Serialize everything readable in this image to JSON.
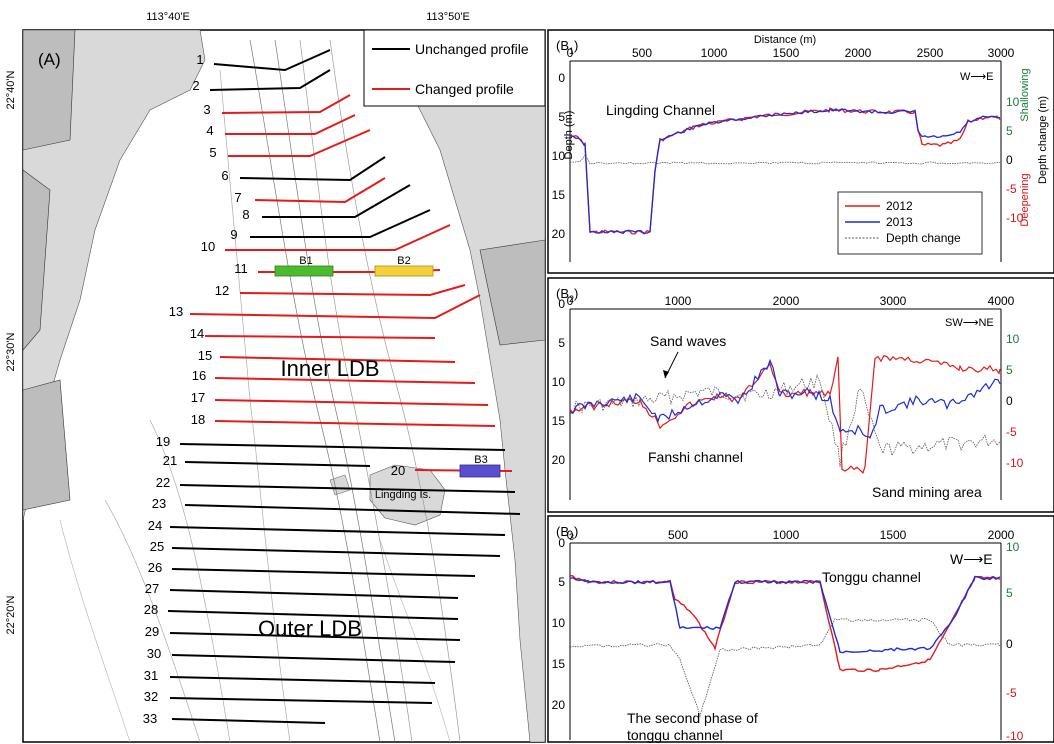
{
  "map": {
    "lon_ticks": [
      "113°40'E",
      "113°50'E"
    ],
    "lat_ticks": [
      "22°40'N",
      "22°30'N",
      "22°20'N"
    ],
    "panel_label": "(A)",
    "legend": {
      "unchanged": "Unchanged profile",
      "changed": "Changed profile"
    },
    "region_inner": "Inner LDB",
    "region_outer": "Outer LDB",
    "island_label": "Lingding Is.",
    "box_labels": [
      "B1",
      "B2",
      "B3"
    ],
    "colors": {
      "unchanged": "#000000",
      "changed": "#e41a1c",
      "box_b1": "#4cbb2e",
      "box_b2": "#f3d13a",
      "box_b3": "#5a4fcf",
      "land": "#d9d9d9"
    },
    "profiles": [
      {
        "id": "1",
        "status": "unchanged"
      },
      {
        "id": "2",
        "status": "unchanged"
      },
      {
        "id": "3",
        "status": "changed"
      },
      {
        "id": "4",
        "status": "changed"
      },
      {
        "id": "5",
        "status": "changed"
      },
      {
        "id": "6",
        "status": "unchanged"
      },
      {
        "id": "7",
        "status": "changed"
      },
      {
        "id": "8",
        "status": "unchanged"
      },
      {
        "id": "9",
        "status": "unchanged"
      },
      {
        "id": "10",
        "status": "changed"
      },
      {
        "id": "11",
        "status": "changed"
      },
      {
        "id": "12",
        "status": "changed"
      },
      {
        "id": "13",
        "status": "changed"
      },
      {
        "id": "14",
        "status": "changed"
      },
      {
        "id": "15",
        "status": "changed"
      },
      {
        "id": "16",
        "status": "changed"
      },
      {
        "id": "17",
        "status": "changed"
      },
      {
        "id": "18",
        "status": "changed"
      },
      {
        "id": "19",
        "status": "unchanged"
      },
      {
        "id": "20",
        "status": "changed"
      },
      {
        "id": "21",
        "status": "unchanged"
      },
      {
        "id": "22",
        "status": "unchanged"
      },
      {
        "id": "23",
        "status": "unchanged"
      },
      {
        "id": "24",
        "status": "unchanged"
      },
      {
        "id": "25",
        "status": "unchanged"
      },
      {
        "id": "26",
        "status": "unchanged"
      },
      {
        "id": "27",
        "status": "unchanged"
      },
      {
        "id": "28",
        "status": "unchanged"
      },
      {
        "id": "29",
        "status": "unchanged"
      },
      {
        "id": "30",
        "status": "unchanged"
      },
      {
        "id": "31",
        "status": "unchanged"
      },
      {
        "id": "32",
        "status": "unchanged"
      },
      {
        "id": "33",
        "status": "unchanged"
      }
    ]
  },
  "panels": {
    "b1": {
      "label_main": "(B",
      "label_sub": "1",
      "label_end": ")",
      "title": "Distance (m)",
      "x_ticks": [
        "0",
        "500",
        "1000",
        "1500",
        "2000",
        "2500",
        "3000"
      ],
      "y_ticks": [
        "5",
        "10",
        "15",
        "20"
      ],
      "y_left_label": "Depth (m)",
      "y_right_ticks": [
        "10",
        "5",
        "0",
        "-5",
        "-10"
      ],
      "right_shallow": "Shallowing",
      "right_deep": "Deepening",
      "right_axis_label": "Depth change (m)",
      "direction": "W⟶E",
      "annotation": "Lingding Channel",
      "legend": [
        "2012",
        "2013",
        "Depth change"
      ]
    },
    "b2": {
      "label_main": "(B",
      "label_sub": "2",
      "label_end": ")",
      "x_ticks": [
        "0",
        "1000",
        "2000",
        "3000",
        "4000"
      ],
      "y_ticks": [
        "5",
        "10",
        "15",
        "20"
      ],
      "y_right_ticks": [
        "10",
        "5",
        "0",
        "-5",
        "-10"
      ],
      "direction": "SW⟶NE",
      "ann_sand_waves": "Sand waves",
      "ann_fanshi": "Fanshi channel",
      "ann_mining": "Sand mining area"
    },
    "b3": {
      "label_main": "(B",
      "label_sub": "3",
      "label_end": ")",
      "x_ticks": [
        "0",
        "500",
        "1000",
        "1500",
        "2000"
      ],
      "y_ticks": [
        "5",
        "10",
        "15",
        "20"
      ],
      "y_right_ticks": [
        "10",
        "5",
        "0",
        "-5",
        "-10"
      ],
      "direction": "W⟶E",
      "ann_tonggu": "Tonggu channel",
      "ann_second_1": "The second phase of",
      "ann_second_2": "tonggu channel"
    },
    "series_colors": {
      "y2012": "#e41a1c",
      "y2013": "#1f2bd6",
      "change": "#555555",
      "shallow": "#1a7d3c",
      "deep": "#d4141c"
    }
  }
}
